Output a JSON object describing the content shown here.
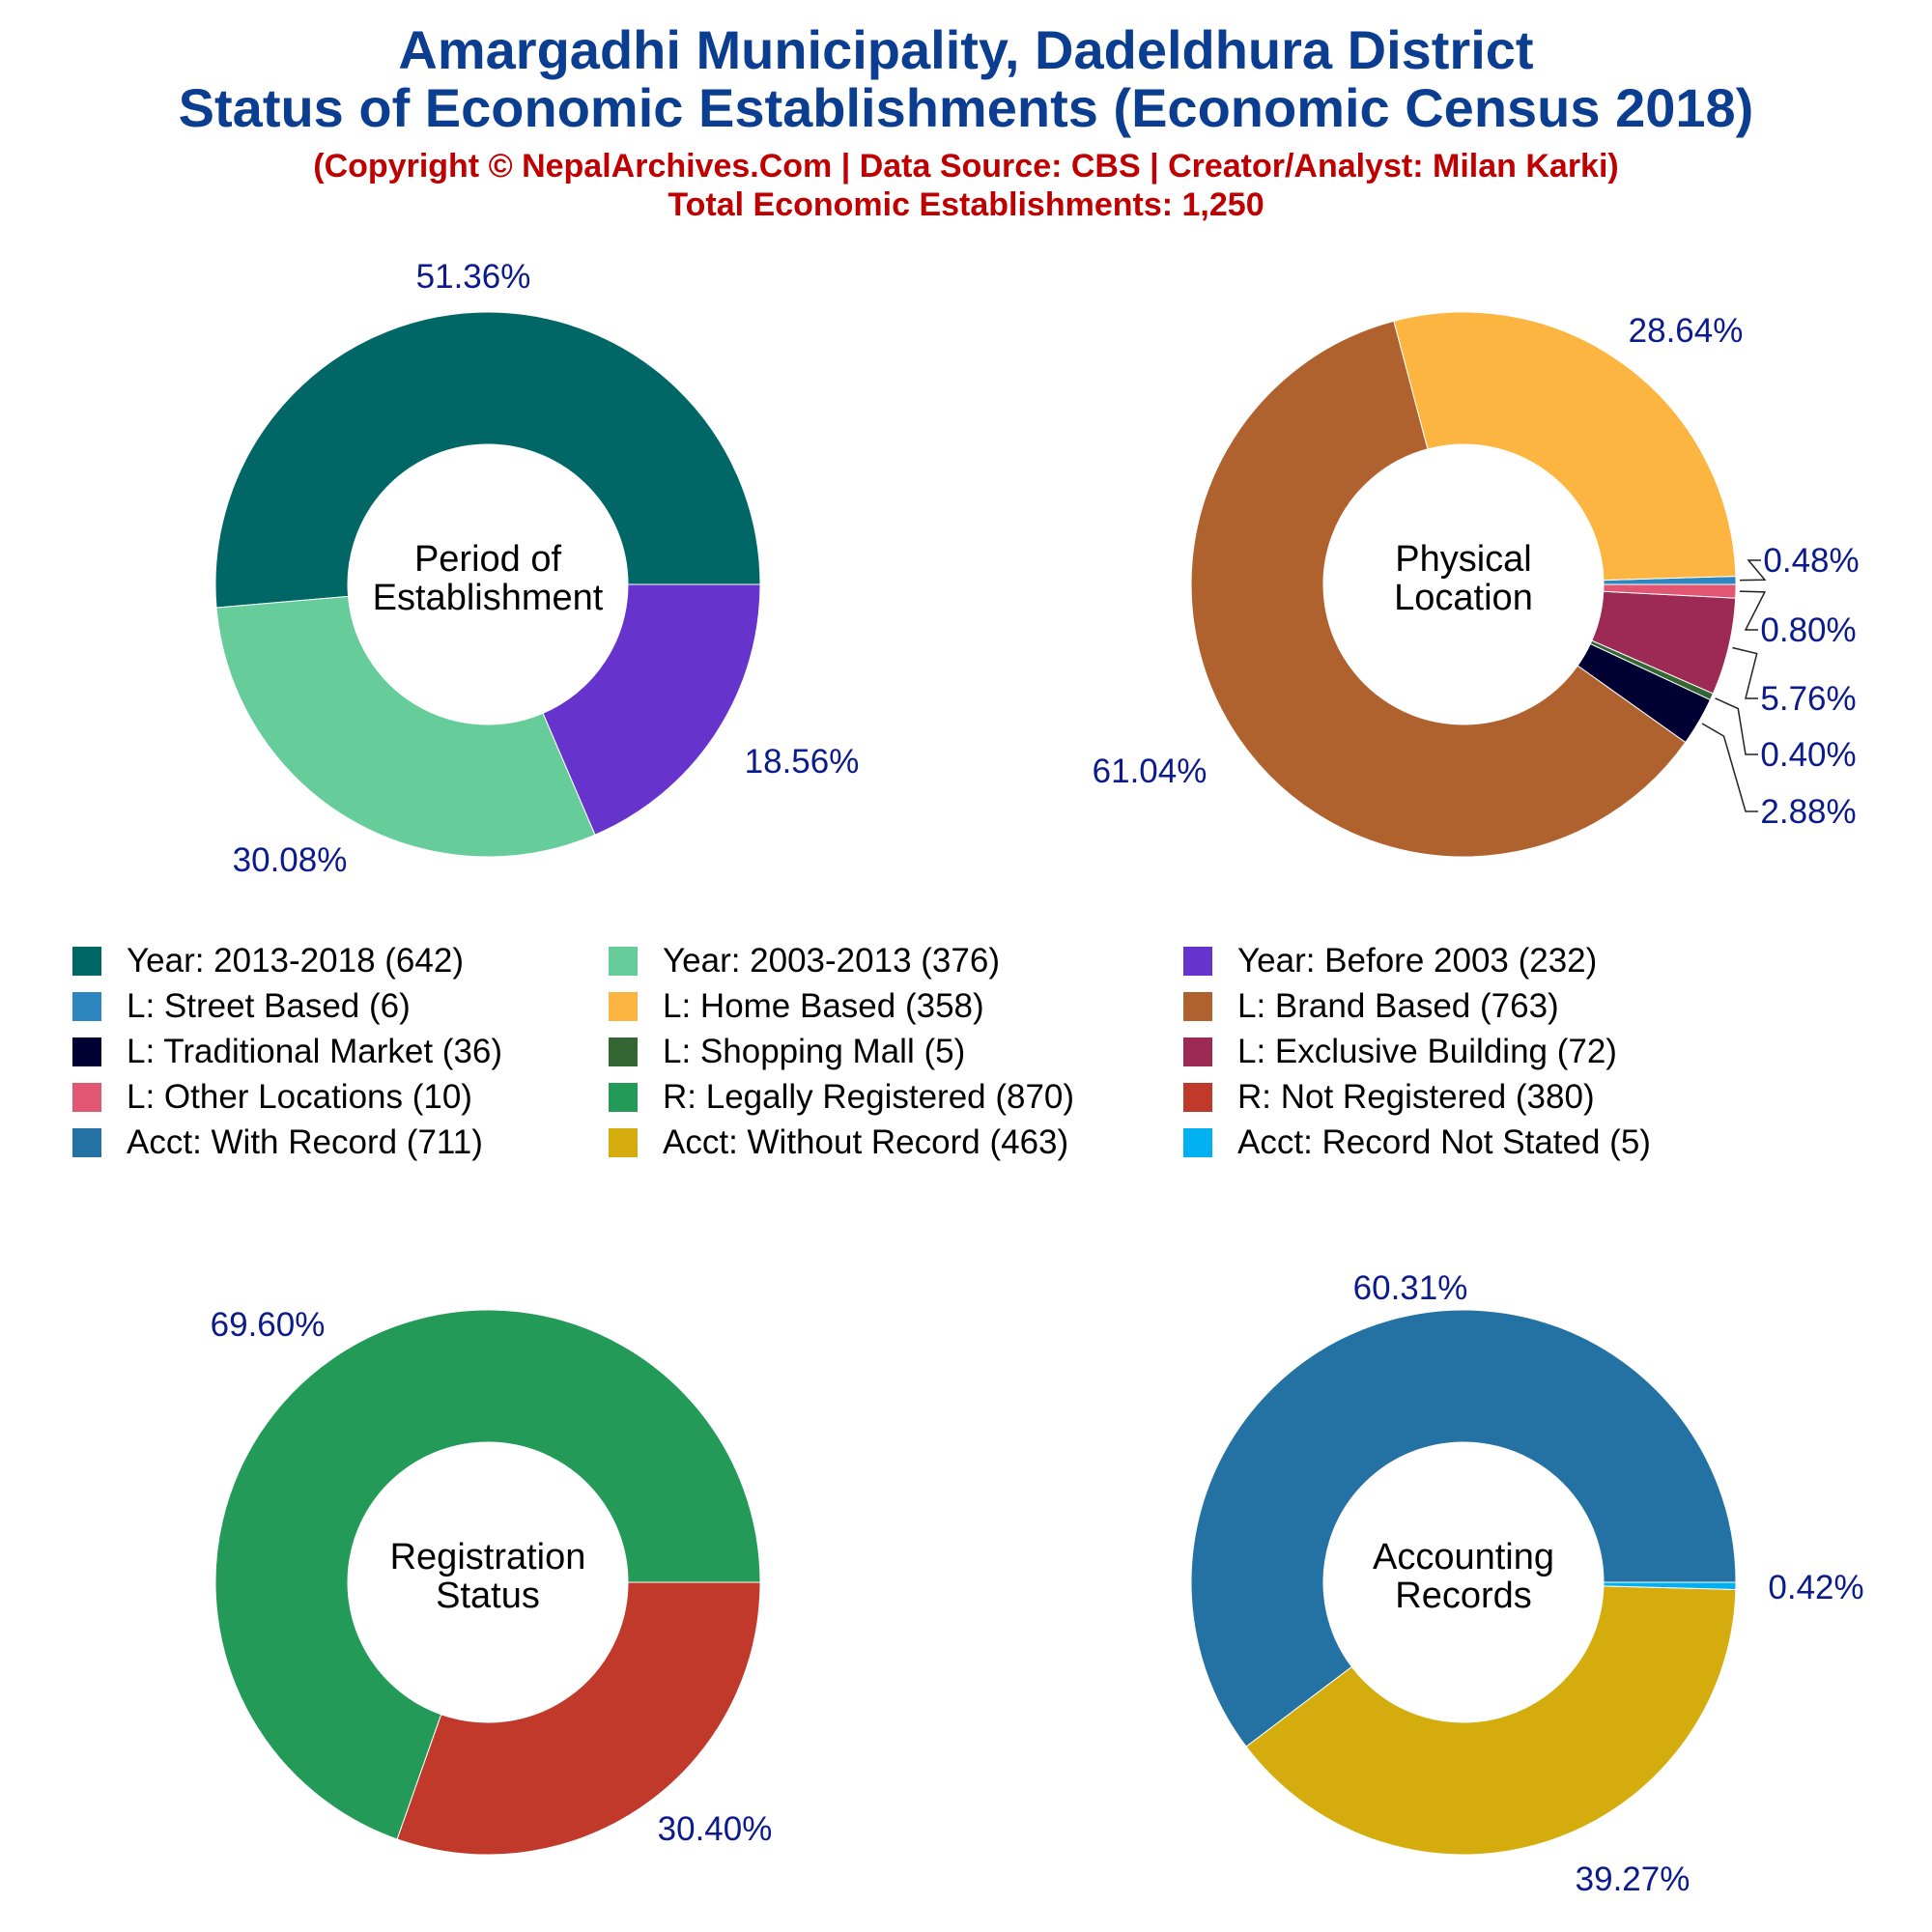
{
  "header": {
    "title_line1": "Amargadhi Municipality, Dadeldhura District",
    "title_line2": "Status of Economic Establishments (Economic Census 2018)",
    "subtitle_line1": "(Copyright © NepalArchives.Com | Data Source: CBS | Creator/Analyst: Milan Karki)",
    "subtitle_line2": "Total Economic Establishments: 1,250"
  },
  "colors": {
    "title": "#0b3d91",
    "subtitle": "#c00000",
    "percent_label": "#0b1a8c"
  },
  "chart_data": [
    {
      "type": "pie",
      "center_label": [
        "Period of",
        "Establishment"
      ],
      "slices": [
        {
          "label": "Year: 2013-2018 (642)",
          "value": 642,
          "percent": "51.36%",
          "color": "#006666"
        },
        {
          "label": "Year: 2003-2013 (376)",
          "value": 376,
          "percent": "30.08%",
          "color": "#66cc99"
        },
        {
          "label": "Year: Before 2003 (232)",
          "value": 232,
          "percent": "18.56%",
          "color": "#6633cc"
        }
      ]
    },
    {
      "type": "pie",
      "center_label": [
        "Physical",
        "Location"
      ],
      "slices": [
        {
          "label": "L: Street Based (6)",
          "value": 6,
          "percent": "0.48%",
          "color": "#2e86c1"
        },
        {
          "label": "L: Home Based (358)",
          "value": 358,
          "percent": "28.64%",
          "color": "#fbb540"
        },
        {
          "label": "L: Brand Based (763)",
          "value": 763,
          "percent": "61.04%",
          "color": "#b0622e"
        },
        {
          "label": "L: Traditional Market (36)",
          "value": 36,
          "percent": "2.88%",
          "color": "#000033"
        },
        {
          "label": "L: Shopping Mall (5)",
          "value": 5,
          "percent": "0.40%",
          "color": "#336633"
        },
        {
          "label": "L: Exclusive Building (72)",
          "value": 72,
          "percent": "5.76%",
          "color": "#9c2a54"
        },
        {
          "label": "L: Other Locations (10)",
          "value": 10,
          "percent": "0.80%",
          "color": "#e15673"
        }
      ]
    },
    {
      "type": "pie",
      "center_label": [
        "Registration",
        "Status"
      ],
      "slices": [
        {
          "label": "R: Legally Registered (870)",
          "value": 870,
          "percent": "69.60%",
          "color": "#239a58"
        },
        {
          "label": "R: Not Registered (380)",
          "value": 380,
          "percent": "30.40%",
          "color": "#c0392b"
        }
      ]
    },
    {
      "type": "pie",
      "center_label": [
        "Accounting",
        "Records"
      ],
      "slices": [
        {
          "label": "Acct: With Record (711)",
          "value": 711,
          "percent": "60.31%",
          "color": "#2471a3"
        },
        {
          "label": "Acct: Without Record (463)",
          "value": 463,
          "percent": "39.27%",
          "color": "#d4ac0d"
        },
        {
          "label": "Acct: Record Not Stated (5)",
          "value": 5,
          "percent": "0.42%",
          "color": "#00b0f0"
        }
      ]
    }
  ]
}
